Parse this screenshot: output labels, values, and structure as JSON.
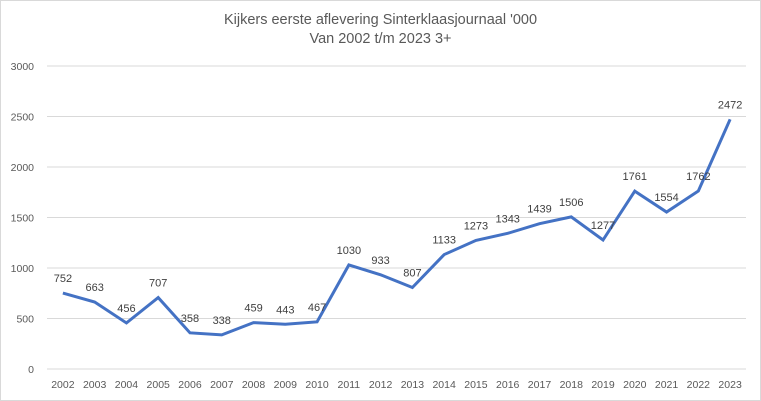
{
  "chart_data": {
    "type": "line",
    "title": "Kijkers eerste aflevering Sinterklaasjournaal '000",
    "subtitle": "Van 2002 t/m 2023 3+",
    "xlabel": "",
    "ylabel": "",
    "ylim": [
      0,
      3000
    ],
    "yticks": [
      0,
      500,
      1000,
      1500,
      2000,
      2500,
      3000
    ],
    "grid": true,
    "legend": "none",
    "line_color": "#4472c4",
    "categories": [
      "2002",
      "2003",
      "2004",
      "2005",
      "2006",
      "2007",
      "2008",
      "2009",
      "2010",
      "2011",
      "2012",
      "2013",
      "2014",
      "2015",
      "2016",
      "2017",
      "2018",
      "2019",
      "2020",
      "2021",
      "2022",
      "2023"
    ],
    "series": [
      {
        "name": "Kijkers ('000)",
        "values": [
          752,
          663,
          456,
          707,
          358,
          338,
          459,
          443,
          467,
          1030,
          933,
          807,
          1133,
          1273,
          1343,
          1439,
          1506,
          1277,
          1761,
          1554,
          1762,
          2472
        ]
      }
    ]
  }
}
